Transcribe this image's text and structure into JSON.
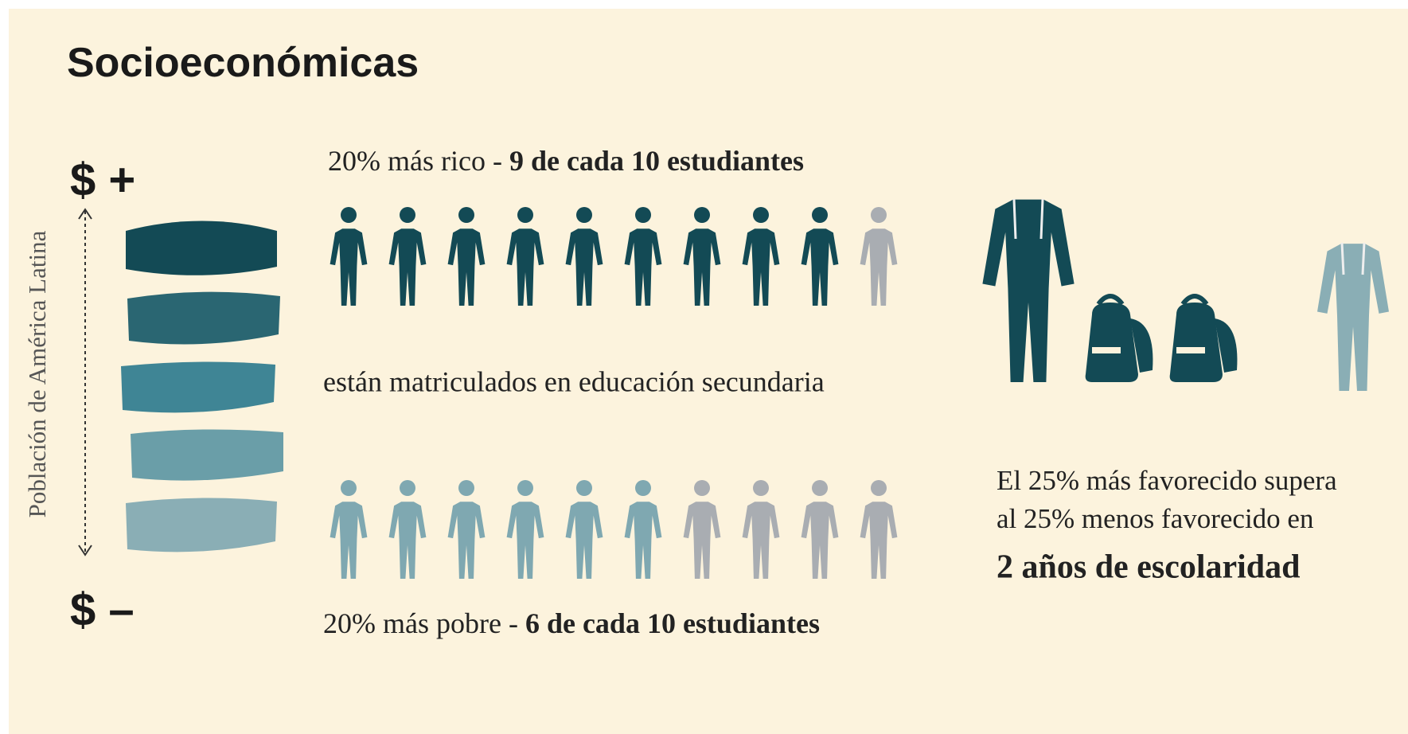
{
  "title": "Socioeconómicas",
  "axis_label": "Población de América Latina",
  "top_marker": "$ +",
  "bottom_marker": "$ –",
  "rich": {
    "prefix": "20% más rico - ",
    "bold": "9 de cada 10 estudiantes",
    "filled": 9,
    "total": 10
  },
  "middle_text": "están matriculados en educación secundaria",
  "poor": {
    "prefix": "20% más pobre - ",
    "bold": "6 de cada 10 estudiantes",
    "filled": 6,
    "total": 10
  },
  "right_text": {
    "line1": "El 25% más favorecido supera",
    "line2": "al 25% menos favorecido en",
    "bold": "2 años de escolaridad"
  }
}
